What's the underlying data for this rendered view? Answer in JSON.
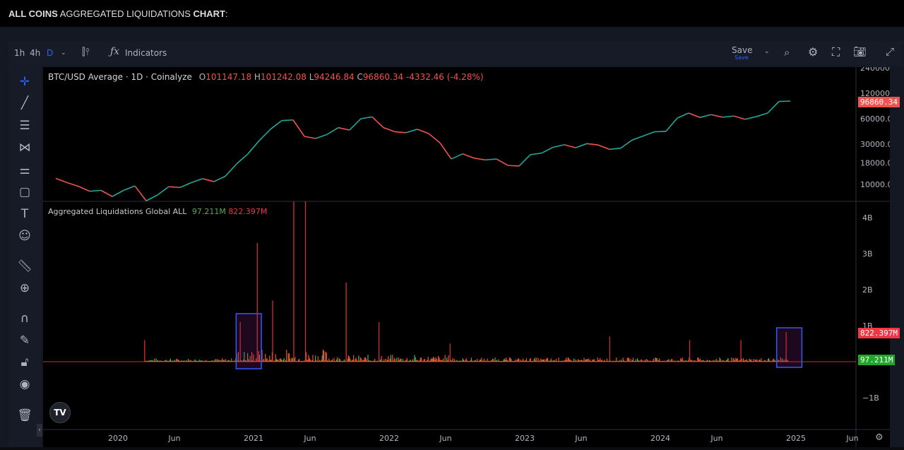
{
  "header": {
    "bold1": "ALL COINS",
    "mid": " AGGREGATED LIQUIDATIONS ",
    "bold2": "CHART",
    "tail": ":"
  },
  "toolbar": {
    "intervals": [
      "1h",
      "4h",
      "D"
    ],
    "active_interval": "D",
    "indicators_label": "Indicators",
    "save_label": "Save",
    "save_sub": "Save"
  },
  "colors": {
    "up": "#26a69a",
    "down": "#ef5350",
    "accent": "#2962ff",
    "liq_long": "#4caf50",
    "liq_short": "#f23645",
    "box": "#2f5bff"
  },
  "legend": {
    "symbol": "BTC/USD Average · 1D · Coinalyze",
    "o_label": "O",
    "o": "101147.18",
    "h_label": "H",
    "h": "101242.08",
    "l_label": "L",
    "l": "94246.84",
    "c_label": "C",
    "c": "96860.34",
    "change": "-4332.46 (-4.28%)",
    "liq_title": "Aggregated Liquidations Global ALL",
    "liq_long": "97.211M",
    "liq_short": "822.397M"
  },
  "chart_data": [
    {
      "type": "line",
      "title": "BTC/USD Average · 1D · Coinalyze",
      "yscale": "log",
      "ylim": [
        7500,
        260000
      ],
      "yticks": [
        "240000.00",
        "120000.00",
        "60000.00",
        "30000.00",
        "18000.00",
        "10000.00"
      ],
      "last_price": "96860.34",
      "x": [
        "2019-07",
        "2019-08",
        "2019-09",
        "2019-10",
        "2019-11",
        "2019-12",
        "2020-01",
        "2020-02",
        "2020-03",
        "2020-04",
        "2020-05",
        "2020-06",
        "2020-07",
        "2020-08",
        "2020-09",
        "2020-10",
        "2020-11",
        "2020-12",
        "2021-01",
        "2021-02",
        "2021-03",
        "2021-04",
        "2021-05",
        "2021-06",
        "2021-07",
        "2021-08",
        "2021-09",
        "2021-10",
        "2021-11",
        "2021-12",
        "2022-01",
        "2022-02",
        "2022-03",
        "2022-04",
        "2022-05",
        "2022-06",
        "2022-07",
        "2022-08",
        "2022-09",
        "2022-10",
        "2022-11",
        "2022-12",
        "2023-01",
        "2023-02",
        "2023-03",
        "2023-04",
        "2023-05",
        "2023-06",
        "2023-07",
        "2023-08",
        "2023-09",
        "2023-10",
        "2023-11",
        "2023-12",
        "2024-01",
        "2024-02",
        "2024-03",
        "2024-04",
        "2024-05",
        "2024-06",
        "2024-07",
        "2024-08",
        "2024-09",
        "2024-10",
        "2024-11",
        "2024-12"
      ],
      "values": [
        11800,
        10500,
        9500,
        8300,
        8500,
        7200,
        8500,
        9600,
        6400,
        7500,
        9400,
        9200,
        10500,
        11700,
        10800,
        12500,
        17500,
        23000,
        33000,
        45000,
        57000,
        58000,
        37000,
        35000,
        39000,
        47000,
        44000,
        60000,
        63000,
        47000,
        42000,
        41000,
        45000,
        40000,
        31000,
        20000,
        23000,
        20500,
        19500,
        20000,
        16800,
        16500,
        22500,
        23500,
        27500,
        29500,
        27200,
        30400,
        29300,
        26000,
        26900,
        33500,
        37500,
        42000,
        42500,
        61000,
        70000,
        62000,
        67000,
        62500,
        64500,
        59000,
        63500,
        70000,
        96000,
        96860
      ]
    },
    {
      "type": "bar",
      "title": "Aggregated Liquidations Global ALL",
      "ylim": [
        -1.5,
        4.5
      ],
      "yunit": "B",
      "yticks": [
        "4B",
        "3B",
        "2B",
        "1B",
        "0",
        "−1B"
      ],
      "last_long": "97.211M",
      "last_short": "822.397M",
      "spikes": {
        "x": [
          "2020-03-12",
          "2020-11-26",
          "2021-01-11",
          "2021-02-22",
          "2021-04-18",
          "2021-05-19",
          "2021-09-07",
          "2021-12-04",
          "2022-06-13",
          "2023-08-17",
          "2024-03-19",
          "2024-08-05",
          "2024-12-05"
        ],
        "short": [
          0.6,
          1.1,
          3.3,
          1.7,
          4.5,
          4.5,
          2.2,
          1.1,
          0.5,
          0.7,
          0.6,
          0.6,
          0.82
        ]
      },
      "annotations": [
        {
          "type": "rectangle",
          "from": "2020-11-15",
          "to": "2021-01-22"
        },
        {
          "type": "rectangle",
          "from": "2024-11-10",
          "to": "2025-01-17"
        }
      ]
    },
    {
      "xticks": [
        "2020",
        "Jun",
        "2021",
        "Jun",
        "2022",
        "Jun",
        "2023",
        "Jun",
        "2024",
        "Jun",
        "2025",
        "Jun"
      ]
    }
  ]
}
